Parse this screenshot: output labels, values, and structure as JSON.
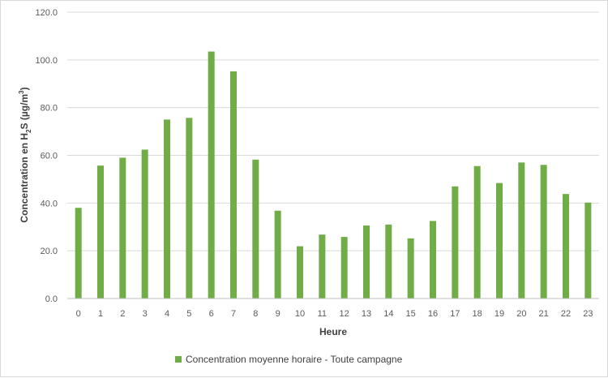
{
  "chart_data": {
    "type": "bar",
    "title": "",
    "xlabel": "Heure",
    "ylabel": {
      "part1": "Concentration en H",
      "sub": "2",
      "part2": "S (µg/m",
      "sup": "3",
      "part3": ")"
    },
    "categories": [
      "0",
      "1",
      "2",
      "3",
      "4",
      "5",
      "6",
      "7",
      "8",
      "9",
      "10",
      "11",
      "12",
      "13",
      "14",
      "15",
      "16",
      "17",
      "18",
      "19",
      "20",
      "21",
      "22",
      "23"
    ],
    "series": [
      {
        "name": "Concentration moyenne horaire - Toute campagne",
        "color": "#70ad47",
        "values": [
          38.0,
          55.7,
          59.0,
          62.4,
          75.0,
          75.7,
          103.5,
          95.2,
          58.2,
          36.8,
          21.9,
          26.8,
          25.8,
          30.6,
          31.0,
          25.2,
          32.5,
          47.0,
          55.5,
          48.4,
          57.0,
          56.0,
          43.8,
          40.2
        ]
      }
    ],
    "ylim": [
      0,
      120
    ],
    "yticks": [
      "0.0",
      "20.0",
      "40.0",
      "60.0",
      "80.0",
      "100.0",
      "120.0"
    ],
    "grid": true,
    "legend_position": "bottom"
  }
}
